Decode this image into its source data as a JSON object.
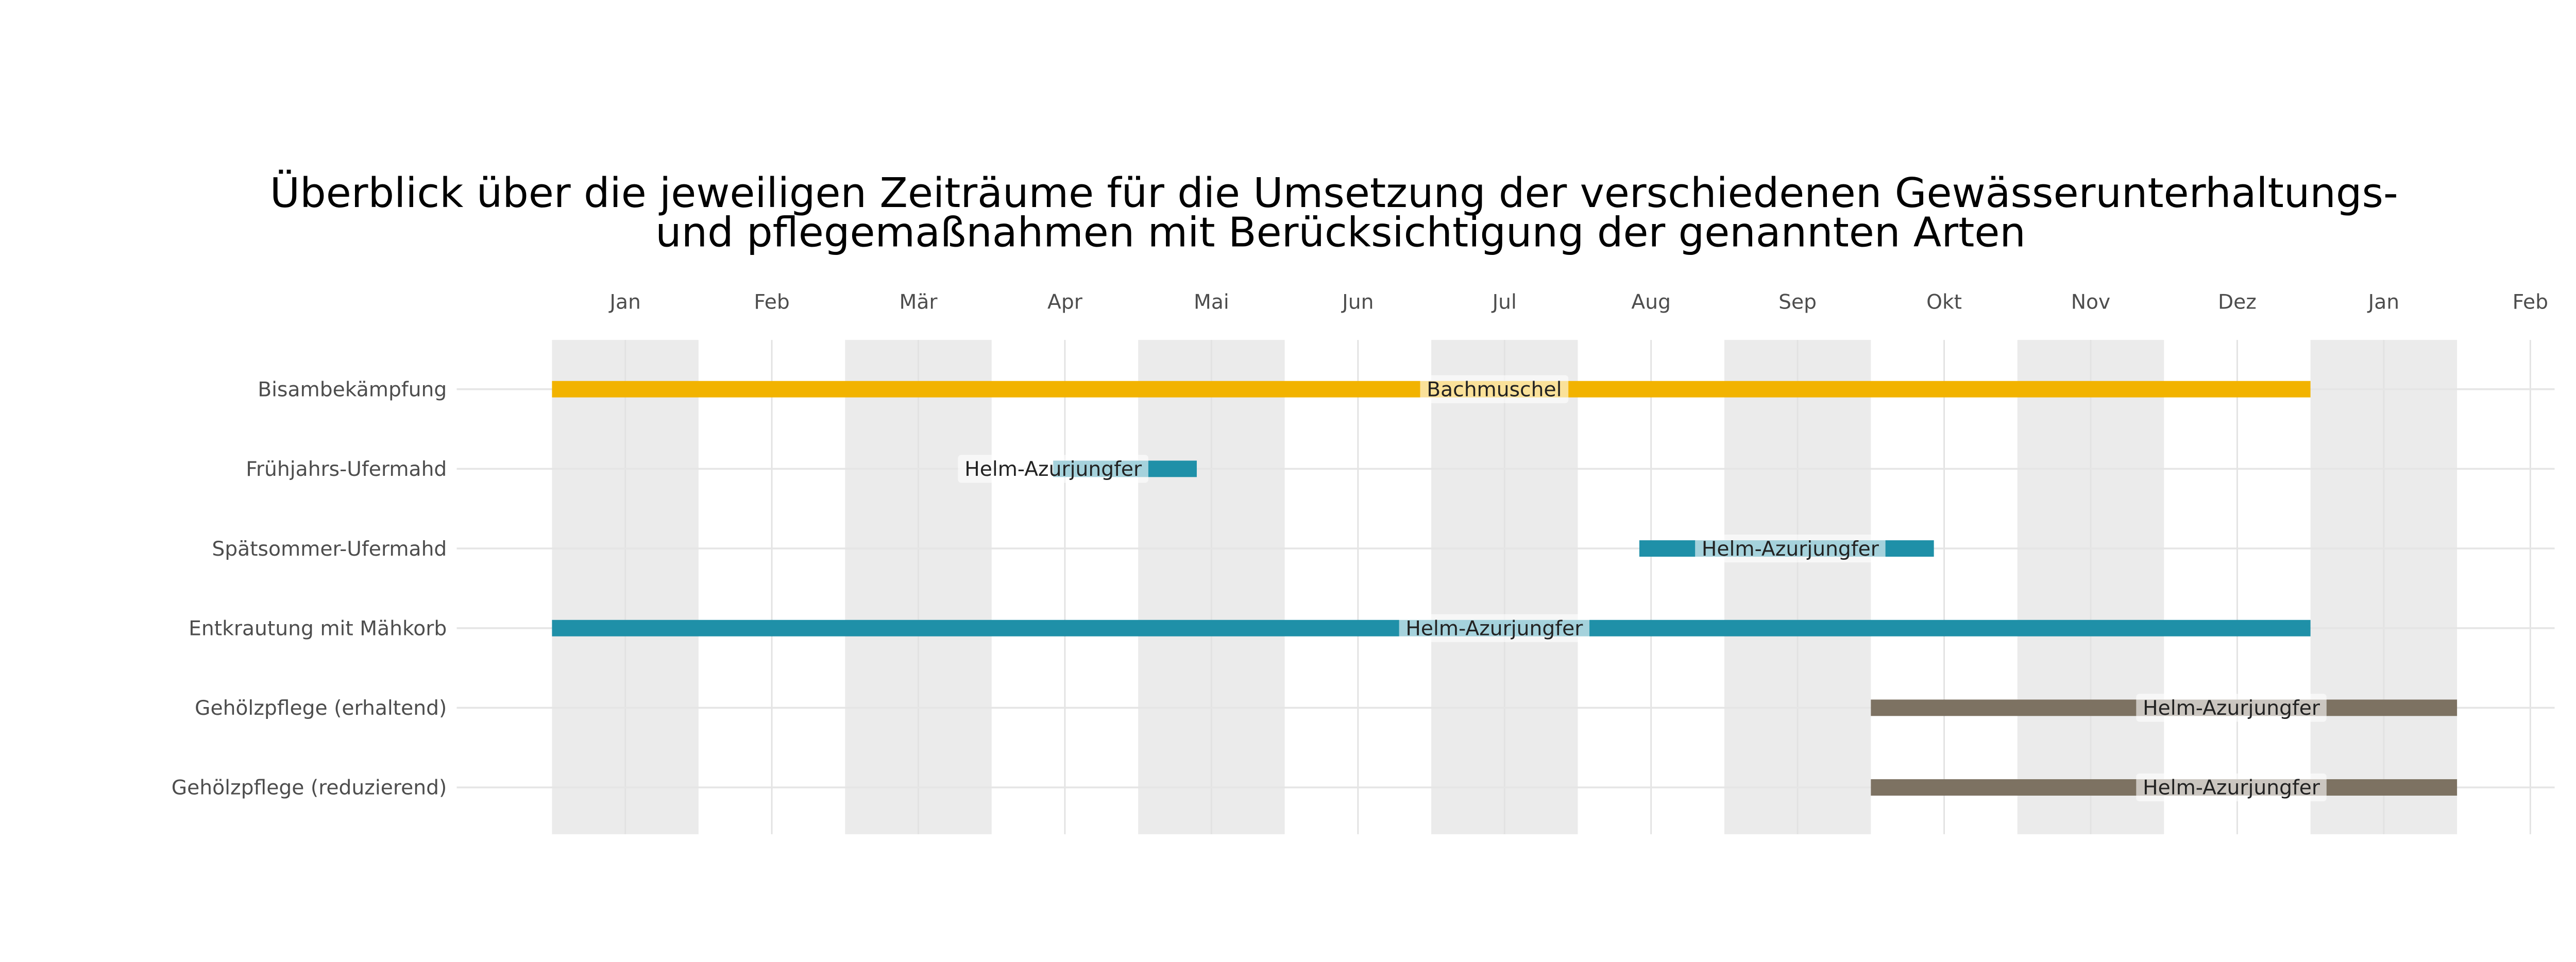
{
  "chart_data": {
    "type": "gantt",
    "title": "Überblick über die jeweiligen Zeiträume für die Umsetzung der verschiedenen Gewässerunterhaltungs-",
    "title_line2": "und pflegemaßnahmen mit Berücksichtigung der genannten Arten",
    "xlabel": "",
    "ylabel": "",
    "x_unit": "months since Jan 1",
    "xlim": [
      0,
      13.8
    ],
    "x_ticks": [
      {
        "label": "Jan",
        "value": 0.5
      },
      {
        "label": "Feb",
        "value": 1.5
      },
      {
        "label": "Mär",
        "value": 2.5
      },
      {
        "label": "Apr",
        "value": 3.5
      },
      {
        "label": "Mai",
        "value": 4.5
      },
      {
        "label": "Jun",
        "value": 5.5
      },
      {
        "label": "Jul",
        "value": 6.5
      },
      {
        "label": "Aug",
        "value": 7.5
      },
      {
        "label": "Sep",
        "value": 8.5
      },
      {
        "label": "Okt",
        "value": 9.5
      },
      {
        "label": "Nov",
        "value": 10.5
      },
      {
        "label": "Dez",
        "value": 11.5
      },
      {
        "label": "Jan",
        "value": 12.5
      },
      {
        "label": "Feb",
        "value": 13.5
      }
    ],
    "shaded_months": [
      [
        0,
        1
      ],
      [
        2,
        3
      ],
      [
        4,
        5
      ],
      [
        6,
        7
      ],
      [
        8,
        9
      ],
      [
        10,
        11
      ],
      [
        12,
        13
      ]
    ],
    "categories": [
      "Bisambekämpfung",
      "Frühjahrs-Ufermahd",
      "Spätsommer-Ufermahd",
      "Entkrautung mit Mähkorb",
      "Gehölzpflege (erhaltend)",
      "Gehölzpflege (reduzierend)"
    ],
    "tasks": [
      {
        "name": "Bisambekämpfung",
        "start": 0,
        "end": 12,
        "species": "Bachmuschel",
        "label_at": 6.43,
        "color": "#F2B300"
      },
      {
        "name": "Frühjahrs-Ufermahd",
        "start": 3.42,
        "end": 4.4,
        "species": "Helm-Azurjungfer",
        "label_at": 3.42,
        "color": "#1F90A8"
      },
      {
        "name": "Spätsommer-Ufermahd",
        "start": 7.42,
        "end": 9.43,
        "species": "Helm-Azurjungfer",
        "label_at": 8.45,
        "color": "#1F90A8"
      },
      {
        "name": "Entkrautung mit Mähkorb",
        "start": 0,
        "end": 12,
        "species": "Helm-Azurjungfer",
        "label_at": 6.43,
        "color": "#1F90A8"
      },
      {
        "name": "Gehölzpflege (erhaltend)",
        "start": 9,
        "end": 13,
        "species": "Helm-Azurjungfer",
        "label_at": 11.46,
        "color": "#7D7262"
      },
      {
        "name": "Gehölzpflege (reduzierend)",
        "start": 9,
        "end": 13,
        "species": "Helm-Azurjungfer",
        "label_at": 11.46,
        "color": "#7D7262"
      }
    ],
    "grid": true,
    "legend": "none"
  }
}
